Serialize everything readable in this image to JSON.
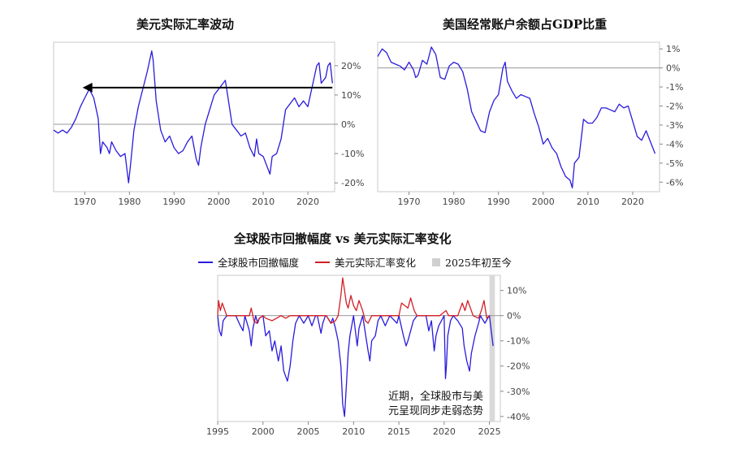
{
  "chart_data": [
    {
      "id": "usd_real",
      "type": "line",
      "title": "美元实际汇率波动",
      "xlim": [
        1963,
        2026
      ],
      "ylim": [
        -23,
        28
      ],
      "x_ticks": [
        1970,
        1980,
        1990,
        2000,
        2010,
        2020
      ],
      "y_ticks": [
        -20,
        -10,
        0,
        10,
        20
      ],
      "y_tick_labels": [
        "-20%",
        "-10%",
        "0%",
        "10%",
        "20%"
      ],
      "y_axis_side": "right",
      "reference_line": 0,
      "arrow": {
        "from": [
          2025.5,
          12.5
        ],
        "to": [
          1969.5,
          12.5
        ]
      },
      "series": [
        {
          "color": "#2a1bdc",
          "x": [
            1963,
            1964,
            1965,
            1966,
            1967,
            1968,
            1969,
            1970,
            1971,
            1972,
            1973,
            1973.5,
            1974,
            1975,
            1975.5,
            1976,
            1977,
            1978,
            1979,
            1979.8,
            1980.3,
            1981,
            1982,
            1983,
            1984,
            1985,
            1985.3,
            1986,
            1987,
            1988,
            1989,
            1990,
            1991,
            1992,
            1993,
            1994,
            1995,
            1995.5,
            1996,
            1997,
            1998,
            1999,
            2000,
            2001,
            2001.5,
            2002,
            2003,
            2004,
            2005,
            2006,
            2007,
            2008,
            2008.5,
            2009,
            2010,
            2011,
            2011.5,
            2012,
            2013,
            2014,
            2015,
            2016,
            2017,
            2018,
            2019,
            2020,
            2021,
            2022,
            2022.5,
            2023,
            2024,
            2024.5,
            2025,
            2025.5
          ],
          "values": [
            -2,
            -3,
            -2,
            -3,
            -1,
            2,
            6,
            9,
            12,
            9,
            2,
            -10,
            -6,
            -8,
            -10,
            -6,
            -9,
            -11,
            -10,
            -20,
            -13,
            -2,
            6,
            12,
            18,
            25,
            22,
            8,
            -2,
            -6,
            -4,
            -8,
            -10,
            -9,
            -6,
            -4,
            -12,
            -14,
            -8,
            0,
            5,
            10,
            12,
            14,
            15,
            10,
            0,
            -2,
            -4,
            -3,
            -8,
            -11,
            -5,
            -10,
            -11,
            -15,
            -17,
            -11,
            -10,
            -5,
            5,
            7,
            9,
            6,
            8,
            6,
            13,
            20,
            21,
            14,
            16,
            20,
            21,
            14
          ]
        }
      ]
    },
    {
      "id": "ca_gdp",
      "type": "line",
      "title": "美国经常账户余额占GDP比重",
      "xlim": [
        1963,
        2026
      ],
      "ylim": [
        -6.5,
        1.35
      ],
      "x_ticks": [
        1970,
        1980,
        1990,
        2000,
        2010,
        2020
      ],
      "y_ticks": [
        1,
        0,
        -1,
        -2,
        -3,
        -4,
        -5,
        -6
      ],
      "y_tick_labels": [
        "1%",
        "0%",
        "-1%",
        "-2%",
        "-3%",
        "-4%",
        "-5%",
        "-6%"
      ],
      "y_axis_side": "right",
      "reference_line": 0,
      "series": [
        {
          "color": "#2a1bdc",
          "x": [
            1963,
            1964,
            1965,
            1966,
            1967,
            1968,
            1969,
            1970,
            1971,
            1971.5,
            1972,
            1973,
            1974,
            1975,
            1976,
            1977,
            1978,
            1979,
            1980,
            1981,
            1982,
            1983,
            1984,
            1985,
            1986,
            1987,
            1988,
            1989,
            1990,
            1991,
            1991.5,
            1992,
            1993,
            1994,
            1995,
            1996,
            1997,
            1998,
            1999,
            2000,
            2001,
            2002,
            2003,
            2004,
            2005,
            2006,
            2006.5,
            2007,
            2008,
            2009,
            2010,
            2011,
            2012,
            2013,
            2014,
            2015,
            2016,
            2017,
            2018,
            2019,
            2020,
            2021,
            2022,
            2023,
            2024,
            2025
          ],
          "values": [
            0.6,
            1.0,
            0.8,
            0.3,
            0.2,
            0.1,
            -0.1,
            0.3,
            -0.1,
            -0.5,
            -0.4,
            0.4,
            0.2,
            1.1,
            0.7,
            -0.5,
            -0.6,
            0.1,
            0.3,
            0.2,
            -0.2,
            -1.1,
            -2.3,
            -2.8,
            -3.3,
            -3.4,
            -2.3,
            -1.7,
            -1.4,
            0.0,
            0.3,
            -0.7,
            -1.2,
            -1.6,
            -1.4,
            -1.5,
            -1.6,
            -2.4,
            -3.1,
            -4.0,
            -3.7,
            -4.2,
            -4.5,
            -5.2,
            -5.7,
            -5.9,
            -6.3,
            -5.0,
            -4.7,
            -2.7,
            -2.9,
            -2.9,
            -2.6,
            -2.1,
            -2.1,
            -2.2,
            -2.3,
            -1.9,
            -2.1,
            -2.0,
            -2.8,
            -3.6,
            -3.8,
            -3.3,
            -3.9,
            -4.5
          ]
        }
      ]
    },
    {
      "id": "drawdown",
      "type": "line",
      "title": "全球股市回撤幅度 vs 美元实际汇率变化",
      "xlim": [
        1995,
        2026.2
      ],
      "ylim": [
        -42,
        16
      ],
      "x_ticks": [
        1995,
        2000,
        2005,
        2010,
        2015,
        2020,
        2025
      ],
      "y_ticks": [
        10,
        0,
        -10,
        -20,
        -30,
        -40
      ],
      "y_tick_labels": [
        "10%",
        "0%",
        "-10%",
        "-20%",
        "-30%",
        "-40%"
      ],
      "y_axis_side": "right",
      "reference_line": 0,
      "shade": {
        "from": 2025.0,
        "to": 2025.6,
        "color": "#d9d9d9"
      },
      "legend": [
        "全球股市回撤幅度",
        "美元实际汇率变化",
        "2025年初至今"
      ],
      "annotation": [
        "近期，全球股市与美",
        "元呈现同步走弱态势"
      ],
      "series": [
        {
          "name": "全球股市回撤幅度",
          "color": "#2a1bdc",
          "x": [
            1995,
            1995.2,
            1995.4,
            1995.6,
            1996,
            1997,
            1997.5,
            1997.8,
            1998,
            1998.5,
            1998.7,
            1998.9,
            1999.2,
            1999.4,
            1999.6,
            2000,
            2000.3,
            2000.7,
            2001,
            2001.3,
            2001.7,
            2002,
            2002.3,
            2002.7,
            2003,
            2003.3,
            2003.6,
            2004,
            2004.5,
            2005,
            2005.4,
            2005.8,
            2006,
            2006.4,
            2006.6,
            2006.9,
            2007,
            2007.5,
            2007.7,
            2008,
            2008.3,
            2008.6,
            2008.8,
            2009,
            2009.2,
            2009.4,
            2009.6,
            2010,
            2010.4,
            2010.6,
            2011,
            2011.6,
            2011.8,
            2012,
            2012.4,
            2012.7,
            2013,
            2013.5,
            2014,
            2014.8,
            2015,
            2015.5,
            2015.8,
            2016,
            2016.3,
            2016.6,
            2017,
            2018,
            2018.3,
            2018.6,
            2018.9,
            2019.1,
            2019.4,
            2019.7,
            2020,
            2020.15,
            2020.25,
            2020.4,
            2020.7,
            2021,
            2021.5,
            2022,
            2022.2,
            2022.5,
            2022.8,
            2023,
            2023.4,
            2023.8,
            2024,
            2024.5,
            2024.8,
            2025,
            2025.2,
            2025.4
          ],
          "values": [
            0,
            -6,
            -8,
            -2,
            0,
            0,
            -4,
            -6,
            0,
            -6,
            -12,
            -5,
            0,
            -3,
            -1,
            0,
            -8,
            -6,
            -14,
            -10,
            -18,
            -12,
            -22,
            -26,
            -20,
            -10,
            -3,
            0,
            -3,
            0,
            -4,
            0,
            0,
            -7,
            -3,
            0,
            0,
            -3,
            -1,
            -5,
            -10,
            -20,
            -35,
            -40,
            -28,
            -15,
            -8,
            0,
            -12,
            -5,
            0,
            -14,
            -18,
            -10,
            -8,
            -2,
            0,
            -4,
            0,
            -3,
            0,
            -8,
            -12,
            -10,
            -6,
            -2,
            0,
            0,
            -6,
            -2,
            -14,
            -8,
            -4,
            -2,
            0,
            -25,
            -20,
            -8,
            -2,
            0,
            -2,
            -5,
            -12,
            -18,
            -22,
            -15,
            -8,
            -3,
            0,
            -3,
            -1,
            0,
            -6,
            -12
          ]
        },
        {
          "name": "美元实际汇率变化",
          "color": "#d21f26",
          "x": [
            1995,
            1995.1,
            1995.3,
            1995.5,
            1996,
            1998.5,
            1998.7,
            1999,
            1999.3,
            1999.6,
            2000,
            2000.3,
            2001,
            2001.5,
            2002,
            2002.5,
            2003,
            2007,
            2007.5,
            2008,
            2008.3,
            2008.6,
            2008.8,
            2009,
            2009.2,
            2009.4,
            2009.7,
            2010,
            2010.3,
            2010.6,
            2011,
            2011.3,
            2011.6,
            2012,
            2015,
            2015.3,
            2016,
            2016.3,
            2016.7,
            2017,
            2019.5,
            2020.2,
            2020.5,
            2021.5,
            2022,
            2022.3,
            2022.6,
            2022.9,
            2023.2,
            2023.8,
            2024.1,
            2024.4,
            2024.7,
            2025
          ],
          "values": [
            0,
            6,
            2,
            5,
            0,
            0,
            3,
            -2,
            -3,
            -1,
            0,
            -1,
            -2,
            -1,
            0,
            -1,
            0,
            0,
            -3,
            -2,
            0,
            8,
            15,
            10,
            5,
            3,
            8,
            4,
            2,
            6,
            2,
            -2,
            -3,
            0,
            0,
            5,
            3,
            7,
            2,
            0,
            0,
            2,
            0,
            0,
            5,
            2,
            6,
            3,
            0,
            -1,
            2,
            6,
            -1,
            0
          ]
        }
      ]
    }
  ]
}
